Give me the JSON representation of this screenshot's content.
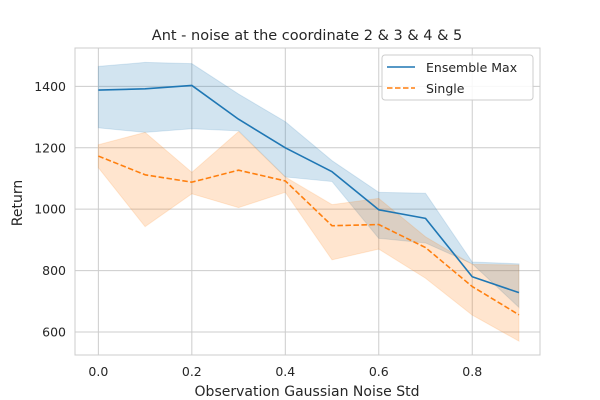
{
  "chart_data": {
    "type": "line",
    "title": "Ant - noise at the coordinate 2 & 3 & 4 & 5",
    "xlabel": "Observation Gaussian Noise Std",
    "ylabel": "Return",
    "x": [
      0.0,
      0.1,
      0.2,
      0.3,
      0.4,
      0.5,
      0.6,
      0.7,
      0.8,
      0.9
    ],
    "xlim": [
      -0.05,
      0.945
    ],
    "ylim": [
      525,
      1525
    ],
    "xticks": [
      0.0,
      0.2,
      0.4,
      0.6,
      0.8
    ],
    "xtick_labels": [
      "0.0",
      "0.2",
      "0.4",
      "0.6",
      "0.8"
    ],
    "yticks": [
      600,
      800,
      1000,
      1200,
      1400
    ],
    "ytick_labels": [
      "600",
      "800",
      "1000",
      "1200",
      "1400"
    ],
    "grid": true,
    "legend_position": "top-right",
    "series": [
      {
        "name": "Ensemble Max",
        "color": "#1f77b4",
        "line_style": "solid",
        "values": [
          1388,
          1392,
          1403,
          1293,
          1200,
          1122,
          998,
          970,
          780,
          728
        ],
        "band_lower": [
          1265,
          1250,
          1262,
          1255,
          1105,
          1090,
          905,
          890,
          822,
          680
        ],
        "band_upper": [
          1465,
          1478,
          1474,
          1375,
          1285,
          1158,
          1055,
          1052,
          828,
          822
        ]
      },
      {
        "name": "Single",
        "color": "#ff7f0e",
        "line_style": "dashed",
        "values": [
          1173,
          1112,
          1088,
          1127,
          1092,
          946,
          950,
          875,
          748,
          656
        ],
        "band_lower": [
          1135,
          943,
          1050,
          1005,
          1055,
          835,
          870,
          775,
          655,
          570
        ],
        "band_upper": [
          1210,
          1250,
          1120,
          1253,
          1105,
          1015,
          1035,
          910,
          820,
          818
        ]
      }
    ]
  }
}
